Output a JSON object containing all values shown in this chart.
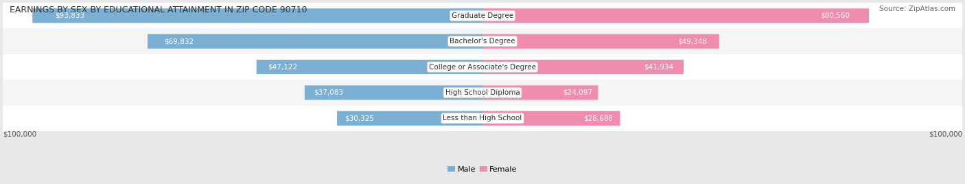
{
  "title": "EARNINGS BY SEX BY EDUCATIONAL ATTAINMENT IN ZIP CODE 90710",
  "source": "Source: ZipAtlas.com",
  "categories": [
    "Less than High School",
    "High School Diploma",
    "College or Associate's Degree",
    "Bachelor's Degree",
    "Graduate Degree"
  ],
  "male_values": [
    30325,
    37083,
    47122,
    69832,
    93833
  ],
  "female_values": [
    28688,
    24097,
    41934,
    49348,
    80560
  ],
  "male_color": "#7bafd4",
  "female_color": "#f08cad",
  "label_color_inside": "#ffffff",
  "label_color_outside": "#555555",
  "bar_height": 0.55,
  "max_value": 100000,
  "background_color": "#f0f0f0",
  "row_colors": [
    "#ffffff",
    "#f5f5f5"
  ],
  "legend_male_color": "#7bafd4",
  "legend_female_color": "#f08cad",
  "xlabel_left": "$100,000",
  "xlabel_right": "$100,000"
}
